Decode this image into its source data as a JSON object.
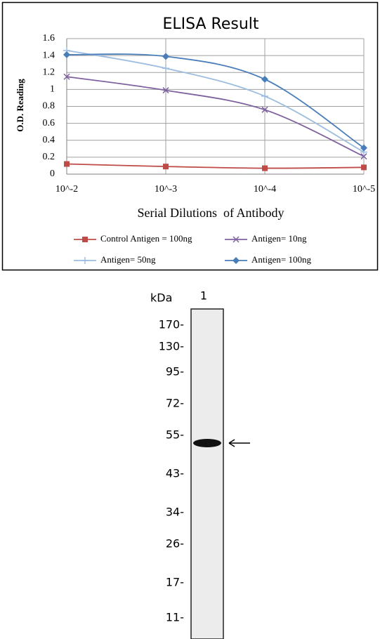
{
  "chart_data": {
    "type": "line",
    "title": "ELISA Result",
    "y_label": "O.D. Reading",
    "x_label": "Serial Dilutions  of Antibody",
    "categories": [
      "10^-2",
      "10^-3",
      "10^-4",
      "10^-5"
    ],
    "series": [
      {
        "name": "Control Antigen = 100ng",
        "color": "#be4b48",
        "marker": "square",
        "values": [
          0.12,
          0.09,
          0.07,
          0.08
        ]
      },
      {
        "name": "Antigen= 10ng",
        "color": "#7e62a0",
        "marker": "x",
        "values": [
          1.15,
          0.99,
          0.76,
          0.21
        ]
      },
      {
        "name": "Antigen= 50ng",
        "color": "#9dbde0",
        "marker": "plus",
        "values": [
          1.46,
          1.25,
          0.92,
          0.26
        ]
      },
      {
        "name": "Antigen= 100ng",
        "color": "#4a7ebb",
        "marker": "diamond",
        "values": [
          1.41,
          1.39,
          1.12,
          0.31
        ]
      }
    ],
    "ylim": [
      0,
      1.6
    ],
    "yticks": [
      0,
      0.2,
      0.4,
      0.6,
      0.8,
      1,
      1.2,
      1.4,
      1.6
    ],
    "grid": true
  },
  "blot": {
    "unit_label": "kDa",
    "lane_label": "1",
    "markers": [
      "170-",
      "130-",
      "95-",
      "72-",
      "55-",
      "43-",
      "34-",
      "26-",
      "17-",
      "11-"
    ]
  }
}
